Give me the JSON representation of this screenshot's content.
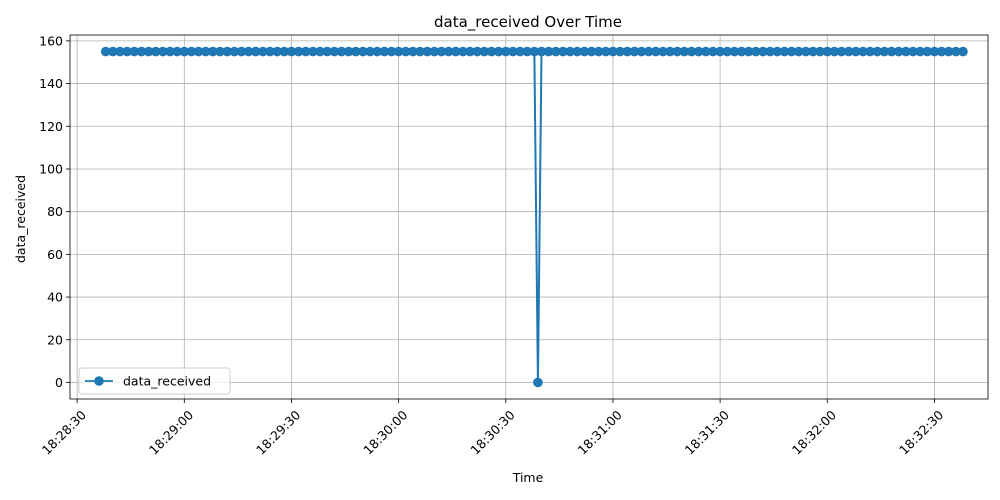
{
  "chart_data": {
    "type": "line",
    "title": "data_received Over Time",
    "xlabel": "Time",
    "ylabel": "data_received",
    "x_range": [
      "18:28:28",
      "18:32:45"
    ],
    "ylim": [
      -7.75,
      162.75
    ],
    "yticks": [
      0,
      20,
      40,
      60,
      80,
      100,
      120,
      140,
      160
    ],
    "xticks": [
      "18:28:30",
      "18:29:00",
      "18:29:30",
      "18:30:00",
      "18:30:30",
      "18:31:00",
      "18:31:30",
      "18:32:00",
      "18:32:30"
    ],
    "grid": true,
    "legend": "lower-left",
    "series": [
      {
        "name": "data_received",
        "color": "#1f77b4",
        "marker": "circle",
        "x": [
          "18:28:38",
          "18:28:40",
          "18:28:42",
          "18:28:44",
          "18:28:46",
          "18:28:48",
          "18:28:50",
          "18:28:52",
          "18:28:54",
          "18:28:56",
          "18:28:58",
          "18:29:00",
          "18:29:02",
          "18:29:04",
          "18:29:06",
          "18:29:08",
          "18:29:10",
          "18:29:12",
          "18:29:14",
          "18:29:16",
          "18:29:18",
          "18:29:20",
          "18:29:22",
          "18:29:24",
          "18:29:26",
          "18:29:28",
          "18:29:30",
          "18:29:32",
          "18:29:34",
          "18:29:36",
          "18:29:38",
          "18:29:40",
          "18:29:42",
          "18:29:44",
          "18:29:46",
          "18:29:48",
          "18:29:50",
          "18:29:52",
          "18:29:54",
          "18:29:56",
          "18:29:58",
          "18:30:00",
          "18:30:02",
          "18:30:04",
          "18:30:06",
          "18:30:08",
          "18:30:10",
          "18:30:12",
          "18:30:14",
          "18:30:16",
          "18:30:18",
          "18:30:20",
          "18:30:22",
          "18:30:24",
          "18:30:26",
          "18:30:28",
          "18:30:30",
          "18:30:32",
          "18:30:34",
          "18:30:36",
          "18:30:38",
          "18:30:39",
          "18:30:40",
          "18:30:42",
          "18:30:44",
          "18:30:46",
          "18:30:48",
          "18:30:50",
          "18:30:52",
          "18:30:54",
          "18:30:56",
          "18:30:58",
          "18:31:00",
          "18:31:02",
          "18:31:04",
          "18:31:06",
          "18:31:08",
          "18:31:10",
          "18:31:12",
          "18:31:14",
          "18:31:16",
          "18:31:18",
          "18:31:20",
          "18:31:22",
          "18:31:24",
          "18:31:26",
          "18:31:28",
          "18:31:30",
          "18:31:32",
          "18:31:34",
          "18:31:36",
          "18:31:38",
          "18:31:40",
          "18:31:42",
          "18:31:44",
          "18:31:46",
          "18:31:48",
          "18:31:50",
          "18:31:52",
          "18:31:54",
          "18:31:56",
          "18:31:58",
          "18:32:00",
          "18:32:02",
          "18:32:04",
          "18:32:06",
          "18:32:08",
          "18:32:10",
          "18:32:12",
          "18:32:14",
          "18:32:16",
          "18:32:18",
          "18:32:20",
          "18:32:22",
          "18:32:24",
          "18:32:26",
          "18:32:28",
          "18:32:30",
          "18:32:32",
          "18:32:34",
          "18:32:36",
          "18:32:38"
        ],
        "y": [
          155,
          155,
          155,
          155,
          155,
          155,
          155,
          155,
          155,
          155,
          155,
          155,
          155,
          155,
          155,
          155,
          155,
          155,
          155,
          155,
          155,
          155,
          155,
          155,
          155,
          155,
          155,
          155,
          155,
          155,
          155,
          155,
          155,
          155,
          155,
          155,
          155,
          155,
          155,
          155,
          155,
          155,
          155,
          155,
          155,
          155,
          155,
          155,
          155,
          155,
          155,
          155,
          155,
          155,
          155,
          155,
          155,
          155,
          155,
          155,
          155,
          0,
          155,
          155,
          155,
          155,
          155,
          155,
          155,
          155,
          155,
          155,
          155,
          155,
          155,
          155,
          155,
          155,
          155,
          155,
          155,
          155,
          155,
          155,
          155,
          155,
          155,
          155,
          155,
          155,
          155,
          155,
          155,
          155,
          155,
          155,
          155,
          155,
          155,
          155,
          155,
          155,
          155,
          155,
          155,
          155,
          155,
          155,
          155,
          155,
          155,
          155,
          155,
          155,
          155,
          155,
          155,
          155,
          155,
          155,
          155,
          155
        ]
      }
    ]
  }
}
